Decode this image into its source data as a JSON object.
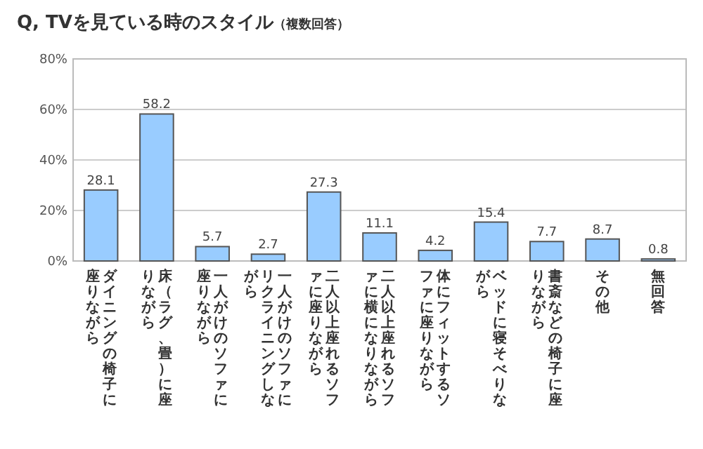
{
  "chart_data": {
    "type": "bar",
    "title": "Q, TVを見ている時のスタイル",
    "subtitle": "（複数回答）",
    "categories": [
      "ダイニングの椅子に座りながら",
      "床（ラグ、畳）に座りながら",
      "一人がけのソファに座りながら",
      "一人がけのソファにリクライニングしながら",
      "二人以上座れるソファに座りながら",
      "二人以上座れるソファに横になりながら",
      "体にフィットするソファに座りながら",
      "ベッドに寝そべりながら",
      "書斎などの椅子に座りながら",
      "その他",
      "無回答"
    ],
    "values": [
      28.1,
      58.2,
      5.7,
      2.7,
      27.3,
      11.1,
      4.2,
      15.4,
      7.7,
      8.7,
      0.8
    ],
    "color": "#99ccff",
    "data_labels": true,
    "grid": "y",
    "ylim": [
      0,
      80
    ],
    "yticks": [
      {
        "value": 0,
        "label": "0%"
      },
      {
        "value": 20,
        "label": "20%"
      },
      {
        "value": 40,
        "label": "40%"
      },
      {
        "value": 60,
        "label": "60%"
      },
      {
        "value": 80,
        "label": "80%"
      }
    ]
  }
}
